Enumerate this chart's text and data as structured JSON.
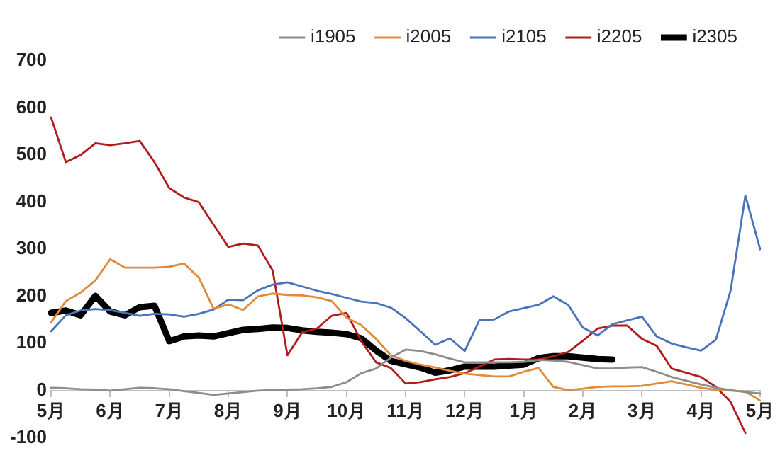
{
  "chart_data": {
    "type": "line",
    "categories": [
      "5月",
      null,
      null,
      null,
      "6月",
      null,
      null,
      null,
      "7月",
      null,
      null,
      null,
      "8月",
      null,
      null,
      null,
      "9月",
      null,
      null,
      null,
      "10月",
      null,
      null,
      null,
      "11月",
      null,
      null,
      null,
      "12月",
      null,
      null,
      null,
      "1月",
      null,
      null,
      null,
      "2月",
      null,
      null,
      null,
      "3月",
      null,
      null,
      null,
      "4月",
      null,
      null,
      null,
      "5月"
    ],
    "ylim": [
      -100,
      700
    ],
    "yticks": [
      -100,
      0,
      100,
      200,
      300,
      400,
      500,
      600,
      700
    ],
    "grid": false,
    "legend": "top",
    "marker": "none",
    "line_style": "solid",
    "series": [
      {
        "name": "i1905",
        "color": "#8c8c8c",
        "values": [
          6,
          5,
          3,
          2,
          0,
          3,
          6,
          5,
          3,
          -1,
          -5,
          -9,
          -6,
          -3,
          0,
          1,
          2,
          3,
          5,
          8,
          18,
          37,
          47,
          70,
          87,
          84,
          77,
          68,
          60,
          60,
          60,
          60,
          61,
          65,
          64,
          61,
          54,
          47,
          47,
          49,
          50,
          40,
          29,
          21,
          13,
          6,
          1,
          -3,
          -6
        ]
      },
      {
        "name": "i2005",
        "color": "#e08a3c",
        "values": [
          145,
          190,
          208,
          234,
          279,
          261,
          261,
          261,
          263,
          270,
          240,
          174,
          183,
          171,
          200,
          206,
          203,
          202,
          198,
          190,
          155,
          139,
          110,
          75,
          63,
          55,
          49,
          42,
          36,
          33,
          30,
          30,
          40,
          48,
          8,
          1,
          4,
          8,
          9,
          9,
          10,
          15,
          20,
          13,
          6,
          2,
          0,
          -2,
          -21
        ]
      },
      {
        "name": "i2105",
        "color": "#4a72b8",
        "values": [
          126,
          160,
          170,
          173,
          171,
          165,
          159,
          163,
          162,
          157,
          163,
          172,
          193,
          192,
          213,
          225,
          230,
          221,
          212,
          205,
          197,
          189,
          186,
          176,
          154,
          126,
          97,
          111,
          84,
          150,
          151,
          168,
          175,
          182,
          200,
          182,
          134,
          117,
          141,
          149,
          157,
          115,
          100,
          92,
          85,
          108,
          212,
          414,
          300
        ]
      },
      {
        "name": "i2205",
        "color": "#b01c1c",
        "values": [
          580,
          485,
          500,
          525,
          521,
          525,
          530,
          485,
          430,
          410,
          400,
          352,
          305,
          312,
          308,
          255,
          75,
          124,
          132,
          159,
          165,
          105,
          60,
          48,
          15,
          18,
          24,
          29,
          37,
          51,
          66,
          67,
          66,
          66,
          73,
          82,
          106,
          132,
          138,
          138,
          110,
          95,
          47,
          38,
          29,
          8,
          -24,
          -90,
          null
        ]
      },
      {
        "name": "i2305",
        "color": "#000000",
        "values": [
          165,
          170,
          160,
          201,
          168,
          160,
          177,
          180,
          105,
          115,
          117,
          115,
          122,
          129,
          131,
          134,
          133,
          128,
          125,
          123,
          120,
          111,
          85,
          63,
          56,
          49,
          38,
          43,
          51,
          51,
          51,
          53,
          55,
          69,
          73,
          73,
          70,
          67,
          66,
          null,
          null,
          null,
          null,
          null,
          null,
          null,
          null,
          null,
          null
        ]
      }
    ]
  }
}
